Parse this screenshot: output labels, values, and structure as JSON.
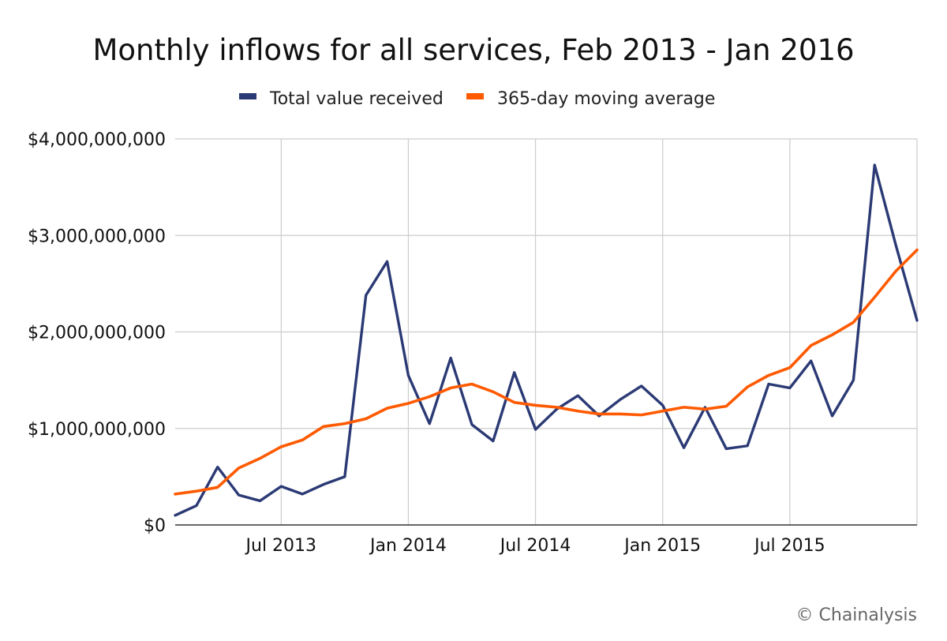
{
  "chart_data": {
    "type": "line",
    "title": "Monthly inflows for all services, Feb 2013 - Jan 2016",
    "xlabel": "",
    "ylabel": "",
    "ylim": [
      0,
      4000000000
    ],
    "yticks": [
      0,
      1000000000,
      2000000000,
      3000000000,
      4000000000
    ],
    "ytick_labels": [
      "$0",
      "$1,000,000,000",
      "$2,000,000,000",
      "$3,000,000,000",
      "$4,000,000,000"
    ],
    "x": [
      "Feb 2013",
      "Mar 2013",
      "Apr 2013",
      "May 2013",
      "Jun 2013",
      "Jul 2013",
      "Aug 2013",
      "Sep 2013",
      "Oct 2013",
      "Nov 2013",
      "Dec 2013",
      "Jan 2014",
      "Feb 2014",
      "Mar 2014",
      "Apr 2014",
      "May 2014",
      "Jun 2014",
      "Jul 2014",
      "Aug 2014",
      "Sep 2014",
      "Oct 2014",
      "Nov 2014",
      "Dec 2014",
      "Jan 2015",
      "Feb 2015",
      "Mar 2015",
      "Apr 2015",
      "May 2015",
      "Jun 2015",
      "Jul 2015",
      "Aug 2015",
      "Sep 2015",
      "Oct 2015",
      "Nov 2015",
      "Dec 2015",
      "Jan 2016"
    ],
    "xtick_labels": [
      "Jul 2013",
      "Jan 2014",
      "Jul 2014",
      "Jan 2015",
      "Jul 2015"
    ],
    "xtick_indices": [
      5,
      11,
      17,
      23,
      29
    ],
    "series": [
      {
        "name": "Total value received",
        "color": "#2b3a75",
        "values": [
          100000000,
          200000000,
          600000000,
          310000000,
          250000000,
          400000000,
          320000000,
          420000000,
          500000000,
          2380000000,
          2730000000,
          1550000000,
          1050000000,
          1730000000,
          1040000000,
          870000000,
          1580000000,
          990000000,
          1200000000,
          1340000000,
          1130000000,
          1300000000,
          1440000000,
          1240000000,
          800000000,
          1220000000,
          790000000,
          820000000,
          1460000000,
          1420000000,
          1700000000,
          1130000000,
          1500000000,
          3730000000,
          2900000000,
          2120000000
        ]
      },
      {
        "name": "365-day moving average",
        "color": "#ff5a00",
        "values": [
          320000000,
          350000000,
          390000000,
          590000000,
          690000000,
          810000000,
          880000000,
          1020000000,
          1050000000,
          1100000000,
          1210000000,
          1260000000,
          1330000000,
          1420000000,
          1460000000,
          1380000000,
          1270000000,
          1240000000,
          1220000000,
          1180000000,
          1150000000,
          1150000000,
          1140000000,
          1180000000,
          1220000000,
          1200000000,
          1230000000,
          1430000000,
          1550000000,
          1630000000,
          1860000000,
          1970000000,
          2100000000,
          2360000000,
          2630000000,
          2850000000
        ]
      }
    ],
    "legend_position": "top-center",
    "grid": true
  },
  "credit": "© Chainalysis"
}
